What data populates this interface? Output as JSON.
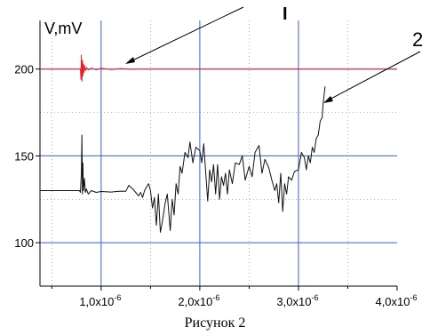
{
  "chart_data": {
    "type": "line",
    "title": "",
    "ylabel": "V,mV",
    "xlabel": "",
    "caption": "Рисунок 2",
    "xlim": [
      3.8e-07,
      4e-06
    ],
    "ylim": [
      75,
      228
    ],
    "x_ticks": [
      {
        "value": 1e-06,
        "mantissa": "1,0x10",
        "exp": "-6"
      },
      {
        "value": 2e-06,
        "mantissa": "2,0x10",
        "exp": "-6"
      },
      {
        "value": 3e-06,
        "mantissa": "3,0x10",
        "exp": "-6"
      },
      {
        "value": 4e-06,
        "mantissa": "4,0x10",
        "exp": "-6"
      }
    ],
    "y_ticks": [
      {
        "value": 100,
        "label": "100"
      },
      {
        "value": 150,
        "label": "150"
      },
      {
        "value": 200,
        "label": "200"
      }
    ],
    "grid": true,
    "grid_color": "#3a5fcd",
    "minor_grid_color": "#8a8a8a",
    "series": [
      {
        "color": "#e8202a",
        "x": [
          3.8e-07,
          7.8e-07,
          7.9e-07,
          7.95e-07,
          8e-07,
          8.05e-07,
          8.1e-07,
          8.15e-07,
          8.2e-07,
          8.25e-07,
          8.3e-07,
          8.4e-07,
          8.5e-07,
          8.7e-07,
          9e-07,
          9.5e-07,
          1e-06,
          1.1e-06,
          1.2e-06,
          1.3e-06,
          1.35e-06,
          4e-06
        ],
        "y": [
          200,
          200,
          200,
          194,
          208,
          193,
          205,
          196,
          203,
          198,
          202,
          199,
          201,
          199.5,
          200.5,
          199.6,
          200.4,
          199.7,
          200.3,
          199.8,
          200,
          200
        ]
      },
      {
        "color": "#111111",
        "x": [
          3.8e-07,
          7.8e-07,
          7.9e-07,
          8e-07,
          8.05e-07,
          8.1e-07,
          8.15e-07,
          8.2e-07,
          8.3e-07,
          8.4e-07,
          8.5e-07,
          8.7e-07,
          9e-07,
          9.5e-07,
          1e-06,
          1.1e-06,
          1.2e-06,
          1.25e-06,
          1.28e-06,
          1.32e-06,
          1.35e-06,
          1.38e-06,
          1.4e-06,
          1.42e-06,
          1.44e-06,
          1.46e-06,
          1.48e-06,
          1.5e-06,
          1.52e-06,
          1.54e-06,
          1.56e-06,
          1.58e-06,
          1.6e-06,
          1.62e-06,
          1.65e-06,
          1.67e-06,
          1.7e-06,
          1.72e-06,
          1.74e-06,
          1.76e-06,
          1.78e-06,
          1.8e-06,
          1.82e-06,
          1.85e-06,
          1.88e-06,
          1.9e-06,
          1.93e-06,
          1.96e-06,
          2e-06,
          2.02e-06,
          2.04e-06,
          2.06e-06,
          2.08e-06,
          2.1e-06,
          2.12e-06,
          2.14e-06,
          2.16e-06,
          2.18e-06,
          2.2e-06,
          2.22e-06,
          2.24e-06,
          2.26e-06,
          2.28e-06,
          2.3e-06,
          2.33e-06,
          2.36e-06,
          2.4e-06,
          2.43e-06,
          2.46e-06,
          2.5e-06,
          2.53e-06,
          2.56e-06,
          2.6e-06,
          2.63e-06,
          2.66e-06,
          2.7e-06,
          2.73e-06,
          2.76e-06,
          2.78e-06,
          2.8e-06,
          2.82e-06,
          2.84e-06,
          2.86e-06,
          2.88e-06,
          2.9e-06,
          2.93e-06,
          2.96e-06,
          3e-06,
          3.03e-06,
          3.06e-06,
          3.08e-06,
          3.1e-06,
          3.12e-06,
          3.14e-06,
          3.16e-06,
          3.18e-06,
          3.2e-06,
          3.22e-06,
          3.24e-06,
          3.25e-06,
          3.27e-06
        ],
        "y": [
          130,
          130,
          129,
          140,
          162,
          128,
          146,
          130,
          137,
          129,
          131,
          128,
          130,
          129,
          129.5,
          129.2,
          129.7,
          129.6,
          133,
          131,
          129,
          127,
          129,
          126,
          130,
          132,
          134,
          130,
          120,
          126,
          110,
          128,
          106,
          112,
          123,
          128,
          107,
          125,
          116,
          134,
          128,
          144,
          140,
          152,
          149,
          158,
          146,
          155,
          153,
          146,
          157,
          140,
          124,
          142,
          135,
          145,
          128,
          145,
          125,
          138,
          133,
          140,
          128,
          142,
          134,
          146,
          145,
          150,
          136,
          144,
          138,
          152,
          156,
          140,
          148,
          143,
          136,
          130,
          134,
          123,
          140,
          118,
          134,
          128,
          138,
          136,
          141,
          142,
          152,
          149,
          142,
          150,
          146,
          155,
          152,
          160,
          162,
          170,
          172,
          180,
          190
        ]
      }
    ],
    "annotations": [
      {
        "text": "I"
      },
      {
        "text": "2"
      }
    ]
  }
}
